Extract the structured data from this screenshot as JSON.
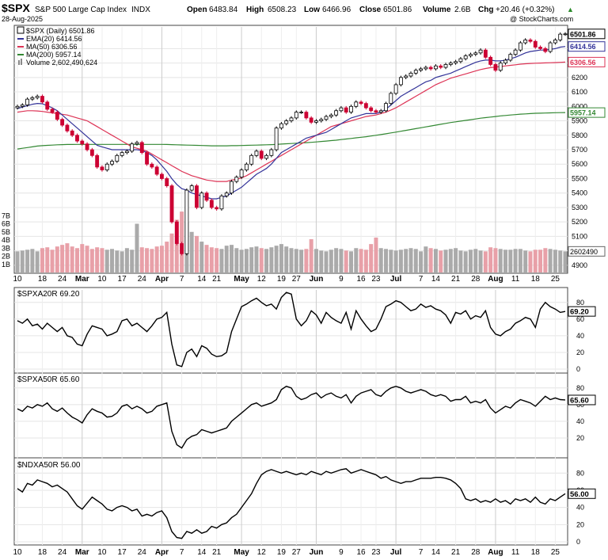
{
  "header": {
    "symbol": "$SPX",
    "name": "S&P 500 Large Cap Index",
    "exchange": "INDX",
    "date": "28-Aug-2025",
    "open_label": "Open",
    "open": "6483.84",
    "high_label": "High",
    "high": "6508.23",
    "low_label": "Low",
    "low": "6466.96",
    "close_label": "Close",
    "close": "6501.86",
    "volume_label": "Volume",
    "volume": "2.6B",
    "chg_label": "Chg",
    "chg": "+20.46 (+0.32%)",
    "watermark": "@ StockCharts.com"
  },
  "legend": {
    "price": "$SPX (Daily) 6501.86",
    "ema20": "EMA(20) 6414.56",
    "ma50": "MA(50) 6306.56",
    "ma200": "MA(200) 5957.14",
    "volume": "Volume 2,602,490,624"
  },
  "panels": {
    "p1": "$SPXA20R 69.20",
    "p2": "$SPXA50R 65.60",
    "p3": "$NDXA50R 56.00"
  },
  "colors": {
    "up": "#000000",
    "down": "#cc0033",
    "ema20": "#333399",
    "ma50": "#dd3355",
    "ma200": "#338833",
    "vol_up": "#aaaaaa",
    "vol_down": "#e8a0a8"
  },
  "chart_data": [
    {
      "type": "candlestick",
      "title": "$SPX (Daily) 6501.86",
      "ylim": [
        4850,
        6550
      ],
      "y_ticks": [
        4900,
        5000,
        5100,
        5200,
        5300,
        5400,
        5500,
        5600,
        5700,
        5800,
        5900,
        6000,
        6100,
        6200,
        6300,
        6400
      ],
      "x_ticks": [
        "10",
        "18",
        "24",
        "Mar",
        "10",
        "17",
        "24",
        "Apr",
        "7",
        "14",
        "21",
        "May",
        "12",
        "19",
        "27",
        "Jun",
        "9",
        "16",
        "23",
        "Jul",
        "7",
        "14",
        "21",
        "28",
        "Aug",
        "11",
        "18",
        "25"
      ],
      "last_labels": {
        "close": "6501.86",
        "ema20": "6414.56",
        "ma50": "6306.56",
        "ma200": "5957.14",
        "volume": "2602490"
      },
      "volume_ticks": [
        "1B",
        "2B",
        "3B",
        "4B",
        "5B",
        "6B",
        "7B"
      ],
      "series": [
        {
          "name": "$SPX (Daily) 6501.86",
          "values": [
            6000,
            6010,
            6050,
            6060,
            6070,
            6030,
            5980,
            5960,
            5910,
            5870,
            5830,
            5800,
            5760,
            5740,
            5700,
            5660,
            5580,
            5560,
            5600,
            5620,
            5660,
            5680,
            5690,
            5740,
            5750,
            5680,
            5600,
            5580,
            5530,
            5500,
            5450,
            5200,
            5050,
            4980,
            5420,
            5450,
            5300,
            5400,
            5350,
            5300,
            5290,
            5380,
            5400,
            5480,
            5510,
            5560,
            5600,
            5660,
            5690,
            5640,
            5660,
            5700,
            5850,
            5880,
            5900,
            5920,
            5960,
            5960,
            5920,
            5890,
            5900,
            5910,
            5930,
            5940,
            5970,
            5990,
            5960,
            6000,
            6030,
            6020,
            5990,
            5970,
            5960,
            5970,
            6020,
            6090,
            6150,
            6200,
            6210,
            6230,
            6250,
            6260,
            6270,
            6260,
            6280,
            6270,
            6290,
            6300,
            6310,
            6330,
            6350,
            6360,
            6370,
            6390,
            6340,
            6290,
            6250,
            6300,
            6320,
            6360,
            6390,
            6440,
            6460,
            6450,
            6410,
            6400,
            6380,
            6440,
            6460,
            6500,
            6501.86
          ]
        },
        {
          "name": "EMA(20) 6414.56",
          "values": [
            5985,
            5995,
            6005,
            6015,
            6020,
            6018,
            6005,
            5990,
            5970,
            5940,
            5910,
            5880,
            5850,
            5820,
            5790,
            5760,
            5730,
            5720,
            5710,
            5700,
            5700,
            5700,
            5700,
            5700,
            5700,
            5695,
            5680,
            5660,
            5630,
            5590,
            5550,
            5500,
            5460,
            5430,
            5420,
            5400,
            5390,
            5380,
            5370,
            5360,
            5360,
            5370,
            5380,
            5400,
            5420,
            5440,
            5470,
            5500,
            5530,
            5550,
            5570,
            5600,
            5640,
            5680,
            5700,
            5720,
            5740,
            5760,
            5780,
            5790,
            5800,
            5810,
            5820,
            5840,
            5860,
            5880,
            5900,
            5920,
            5930,
            5940,
            5950,
            5950,
            5950,
            5960,
            5980,
            6010,
            6040,
            6070,
            6090,
            6110,
            6130,
            6150,
            6170,
            6180,
            6200,
            6210,
            6220,
            6230,
            6245,
            6260,
            6275,
            6290,
            6305,
            6315,
            6320,
            6320,
            6315,
            6315,
            6320,
            6330,
            6340,
            6355,
            6370,
            6380,
            6385,
            6390,
            6390,
            6395,
            6400,
            6410,
            6414.56
          ]
        },
        {
          "name": "MA(50) 6306.56",
          "values": [
            5960,
            5965,
            5970,
            5970,
            5968,
            5965,
            5960,
            5955,
            5950,
            5945,
            5940,
            5930,
            5920,
            5910,
            5900,
            5880,
            5860,
            5840,
            5820,
            5800,
            5780,
            5760,
            5740,
            5720,
            5710,
            5700,
            5690,
            5670,
            5650,
            5630,
            5610,
            5590,
            5570,
            5550,
            5535,
            5520,
            5510,
            5500,
            5490,
            5485,
            5480,
            5480,
            5480,
            5490,
            5495,
            5505,
            5520,
            5540,
            5560,
            5580,
            5600,
            5620,
            5640,
            5660,
            5680,
            5700,
            5720,
            5740,
            5760,
            5780,
            5800,
            5820,
            5840,
            5860,
            5870,
            5880,
            5890,
            5900,
            5910,
            5920,
            5930,
            5935,
            5940,
            5950,
            5960,
            5975,
            5990,
            6010,
            6030,
            6050,
            6070,
            6090,
            6110,
            6130,
            6150,
            6165,
            6180,
            6195,
            6205,
            6215,
            6225,
            6235,
            6245,
            6255,
            6262,
            6268,
            6272,
            6276,
            6280,
            6284,
            6288,
            6292,
            6295,
            6297,
            6299,
            6300,
            6301,
            6302,
            6303,
            6305,
            6306.56
          ]
        },
        {
          "name": "MA(200) 5957.14",
          "values": [
            5705,
            5710,
            5715,
            5720,
            5725,
            5728,
            5730,
            5732,
            5734,
            5735,
            5736,
            5736,
            5737,
            5737,
            5737,
            5737,
            5737,
            5737,
            5737,
            5737,
            5737,
            5737,
            5737,
            5737,
            5737,
            5737,
            5737,
            5737,
            5737,
            5737,
            5736,
            5735,
            5734,
            5733,
            5732,
            5731,
            5730,
            5729,
            5728,
            5727,
            5727,
            5727,
            5727,
            5728,
            5728,
            5729,
            5730,
            5731,
            5732,
            5733,
            5734,
            5735,
            5737,
            5739,
            5741,
            5743,
            5745,
            5747,
            5749,
            5751,
            5754,
            5757,
            5760,
            5763,
            5766,
            5770,
            5774,
            5778,
            5782,
            5786,
            5790,
            5795,
            5800,
            5805,
            5810,
            5816,
            5822,
            5828,
            5834,
            5840,
            5846,
            5852,
            5858,
            5864,
            5870,
            5876,
            5882,
            5888,
            5893,
            5898,
            5903,
            5908,
            5913,
            5918,
            5922,
            5926,
            5930,
            5934,
            5937,
            5940,
            5943,
            5946,
            5948,
            5950,
            5952,
            5953,
            5954,
            5955,
            5956,
            5956.5,
            5957.14
          ]
        },
        {
          "name": "Volume 2,602,490,624",
          "values": [
            2.6,
            2.7,
            2.8,
            2.9,
            2.6,
            3.0,
            3.1,
            2.8,
            3.2,
            3.4,
            3.6,
            3.2,
            3.0,
            3.5,
            3.3,
            2.9,
            3.1,
            3.0,
            2.8,
            2.9,
            2.7,
            2.6,
            3.0,
            2.8,
            6.0,
            3.1,
            3.0,
            2.9,
            3.2,
            3.3,
            3.8,
            4.8,
            6.5,
            7.5,
            6.2,
            5.0,
            4.5,
            3.8,
            3.4,
            3.1,
            3.0,
            2.9,
            3.3,
            3.4,
            3.0,
            2.8,
            2.9,
            3.1,
            3.2,
            3.0,
            2.9,
            3.1,
            3.3,
            3.5,
            3.2,
            3.0,
            2.9,
            2.8,
            2.9,
            4.1,
            2.9,
            2.7,
            2.6,
            2.8,
            3.0,
            2.9,
            2.7,
            2.6,
            3.0,
            2.9,
            2.8,
            3.5,
            4.3,
            3.0,
            2.9,
            2.8,
            2.7,
            2.8,
            2.9,
            3.0,
            2.9,
            2.6,
            3.2,
            3.0,
            2.9,
            2.7,
            2.8,
            2.9,
            3.0,
            2.7,
            2.6,
            2.8,
            2.9,
            2.7,
            2.6,
            3.1,
            3.0,
            2.9,
            2.8,
            2.8,
            2.9,
            2.9,
            2.7,
            2.6,
            2.8,
            2.8,
            3.0,
            2.9,
            2.8,
            2.7,
            2.6
          ]
        }
      ]
    },
    {
      "type": "line",
      "title": "$SPXA20R 69.20",
      "ylim": [
        0,
        95
      ],
      "y_ticks": [
        0,
        20,
        40,
        60,
        80
      ],
      "last_label": "69.20",
      "series": [
        {
          "name": "$SPXA20R 69.20",
          "values": [
            58,
            55,
            60,
            52,
            54,
            48,
            55,
            50,
            45,
            50,
            40,
            38,
            30,
            28,
            42,
            52,
            50,
            48,
            40,
            42,
            45,
            58,
            60,
            52,
            55,
            50,
            45,
            52,
            60,
            62,
            68,
            30,
            5,
            3,
            20,
            24,
            15,
            28,
            25,
            18,
            15,
            16,
            20,
            45,
            60,
            75,
            78,
            82,
            85,
            80,
            76,
            78,
            72,
            86,
            92,
            90,
            60,
            52,
            58,
            70,
            65,
            55,
            68,
            62,
            58,
            55,
            68,
            48,
            70,
            60,
            52,
            45,
            48,
            60,
            75,
            78,
            82,
            80,
            75,
            70,
            72,
            78,
            74,
            76,
            72,
            70,
            65,
            55,
            68,
            66,
            70,
            60,
            64,
            62,
            70,
            50,
            42,
            40,
            45,
            48,
            55,
            58,
            62,
            60,
            50,
            72,
            80,
            75,
            72,
            68,
            69.2
          ]
        }
      ]
    },
    {
      "type": "line",
      "title": "$SPXA50R 65.60",
      "ylim": [
        0,
        95
      ],
      "y_ticks": [
        20,
        40,
        60,
        80
      ],
      "last_label": "65.60",
      "series": [
        {
          "name": "$SPXA50R 65.60",
          "values": [
            55,
            52,
            58,
            56,
            60,
            58,
            62,
            55,
            52,
            56,
            50,
            45,
            42,
            38,
            48,
            55,
            52,
            50,
            45,
            46,
            50,
            58,
            60,
            55,
            58,
            55,
            50,
            52,
            58,
            60,
            62,
            28,
            12,
            8,
            18,
            22,
            24,
            30,
            28,
            26,
            28,
            30,
            32,
            40,
            45,
            50,
            55,
            60,
            62,
            58,
            60,
            62,
            66,
            78,
            82,
            80,
            70,
            66,
            68,
            72,
            74,
            68,
            72,
            74,
            70,
            68,
            72,
            62,
            70,
            74,
            76,
            78,
            72,
            70,
            76,
            80,
            82,
            80,
            76,
            74,
            76,
            78,
            76,
            72,
            70,
            72,
            70,
            64,
            66,
            66,
            70,
            62,
            64,
            62,
            66,
            56,
            50,
            54,
            58,
            56,
            62,
            66,
            64,
            62,
            58,
            64,
            70,
            66,
            68,
            66,
            65.6
          ]
        }
      ]
    },
    {
      "type": "line",
      "title": "$NDXA50R 56.00",
      "ylim": [
        0,
        95
      ],
      "y_ticks": [
        0,
        20,
        40,
        60,
        80
      ],
      "last_label": "56.00",
      "series": [
        {
          "name": "$NDXA50R 56.00",
          "values": [
            62,
            58,
            68,
            66,
            72,
            70,
            68,
            64,
            66,
            62,
            58,
            50,
            42,
            38,
            45,
            52,
            48,
            44,
            38,
            36,
            40,
            42,
            40,
            36,
            38,
            30,
            32,
            30,
            34,
            36,
            28,
            12,
            5,
            4,
            12,
            10,
            14,
            10,
            12,
            18,
            16,
            20,
            22,
            28,
            32,
            40,
            48,
            56,
            68,
            78,
            82,
            84,
            82,
            80,
            82,
            80,
            78,
            80,
            78,
            82,
            80,
            78,
            82,
            80,
            82,
            84,
            85,
            80,
            82,
            84,
            82,
            80,
            78,
            74,
            76,
            72,
            70,
            68,
            70,
            70,
            72,
            74,
            74,
            74,
            75,
            75,
            74,
            72,
            68,
            62,
            50,
            48,
            50,
            46,
            48,
            46,
            50,
            46,
            48,
            44,
            50,
            48,
            50,
            46,
            52,
            46,
            44,
            50,
            48,
            52,
            56
          ]
        }
      ]
    }
  ],
  "shared_x_ticks": [
    "10",
    "18",
    "24",
    "Mar",
    "10",
    "17",
    "24",
    "Apr",
    "7",
    "14",
    "21",
    "May",
    "12",
    "19",
    "27",
    "Jun",
    "9",
    "16",
    "23",
    "Jul",
    "7",
    "14",
    "21",
    "28",
    "Aug",
    "11",
    "18",
    "25"
  ]
}
